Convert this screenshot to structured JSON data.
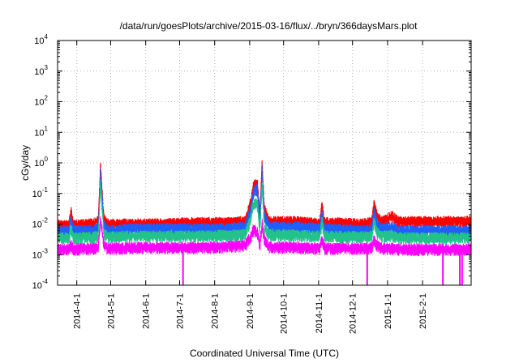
{
  "chart_data": {
    "type": "line",
    "title": "/data/run/goesPlots/archive/2015-03-16/flux/../bryn/366daysMars.plot",
    "xlabel": "Coordinated Universal Time (UTC)",
    "ylabel": "cGy/day",
    "x_axis": "date",
    "xlim": [
      "2014-03-15",
      "2015-03-16"
    ],
    "x_ticks": [
      "2014-4-1",
      "2014-5-1",
      "2014-6-1",
      "2014-7-1",
      "2014-8-1",
      "2014-9-1",
      "2014-10-1",
      "2014-11-1",
      "2014-12-1",
      "2015-1-1",
      "2015-2-1"
    ],
    "y_scale": "log",
    "ylim": [
      0.0001,
      10000
    ],
    "y_ticks": [
      {
        "base": "10",
        "exp": "-4"
      },
      {
        "base": "10",
        "exp": "-3"
      },
      {
        "base": "10",
        "exp": "-2"
      },
      {
        "base": "10",
        "exp": "-1"
      },
      {
        "base": "10",
        "exp": "0"
      },
      {
        "base": "10",
        "exp": "1"
      },
      {
        "base": "10",
        "exp": "2"
      },
      {
        "base": "10",
        "exp": "3"
      },
      {
        "base": "10",
        "exp": "4"
      }
    ],
    "grid": true,
    "series": [
      {
        "color": "#ff0000",
        "points": [
          [
            "2014-03-15",
            0.009
          ],
          [
            "2014-03-25",
            0.009
          ],
          [
            "2014-03-27",
            0.026
          ],
          [
            "2014-03-29",
            0.009
          ],
          [
            "2014-04-15",
            0.01
          ],
          [
            "2014-04-20",
            0.012
          ],
          [
            "2014-04-22",
            0.8
          ],
          [
            "2014-04-25",
            0.015
          ],
          [
            "2014-04-28",
            0.01
          ],
          [
            "2014-05-20",
            0.01
          ],
          [
            "2014-06-15",
            0.01
          ],
          [
            "2014-07-10",
            0.011
          ],
          [
            "2014-08-10",
            0.011
          ],
          [
            "2014-08-28",
            0.012
          ],
          [
            "2014-09-02",
            0.05
          ],
          [
            "2014-09-04",
            0.15
          ],
          [
            "2014-09-06",
            0.2
          ],
          [
            "2014-09-08",
            0.18
          ],
          [
            "2014-09-10",
            0.02
          ],
          [
            "2014-09-12",
            1.0
          ],
          [
            "2014-09-14",
            0.03
          ],
          [
            "2014-09-18",
            0.012
          ],
          [
            "2014-10-15",
            0.012
          ],
          [
            "2014-11-02",
            0.01
          ],
          [
            "2014-11-04",
            0.045
          ],
          [
            "2014-11-06",
            0.011
          ],
          [
            "2014-12-10",
            0.01
          ],
          [
            "2014-12-18",
            0.011
          ],
          [
            "2014-12-20",
            0.045
          ],
          [
            "2014-12-23",
            0.016
          ],
          [
            "2014-12-28",
            0.012
          ],
          [
            "2015-01-05",
            0.018
          ],
          [
            "2015-01-10",
            0.012
          ],
          [
            "2015-02-01",
            0.012
          ],
          [
            "2015-03-16",
            0.012
          ]
        ]
      },
      {
        "color": "#1f5fff",
        "points": [
          [
            "2014-03-15",
            0.006
          ],
          [
            "2014-03-25",
            0.006
          ],
          [
            "2014-03-27",
            0.014
          ],
          [
            "2014-03-29",
            0.006
          ],
          [
            "2014-04-15",
            0.006
          ],
          [
            "2014-04-20",
            0.007
          ],
          [
            "2014-04-22",
            0.5
          ],
          [
            "2014-04-25",
            0.009
          ],
          [
            "2014-04-28",
            0.006
          ],
          [
            "2014-05-20",
            0.007
          ],
          [
            "2014-06-15",
            0.007
          ],
          [
            "2014-07-10",
            0.007
          ],
          [
            "2014-08-10",
            0.007
          ],
          [
            "2014-08-28",
            0.008
          ],
          [
            "2014-09-02",
            0.03
          ],
          [
            "2014-09-04",
            0.1
          ],
          [
            "2014-09-06",
            0.14
          ],
          [
            "2014-09-08",
            0.12
          ],
          [
            "2014-09-10",
            0.012
          ],
          [
            "2014-09-12",
            0.6
          ],
          [
            "2014-09-14",
            0.02
          ],
          [
            "2014-09-18",
            0.008
          ],
          [
            "2014-10-15",
            0.008
          ],
          [
            "2014-11-02",
            0.007
          ],
          [
            "2014-11-04",
            0.025
          ],
          [
            "2014-11-06",
            0.007
          ],
          [
            "2014-12-10",
            0.006
          ],
          [
            "2014-12-18",
            0.007
          ],
          [
            "2014-12-20",
            0.025
          ],
          [
            "2014-12-23",
            0.009
          ],
          [
            "2014-12-28",
            0.007
          ],
          [
            "2015-01-05",
            0.008
          ],
          [
            "2015-01-10",
            0.006
          ],
          [
            "2015-02-01",
            0.006
          ],
          [
            "2015-03-16",
            0.006
          ]
        ]
      },
      {
        "color": "#22c28a",
        "points": [
          [
            "2014-03-15",
            0.0035
          ],
          [
            "2014-03-25",
            0.0035
          ],
          [
            "2014-03-27",
            0.007
          ],
          [
            "2014-03-29",
            0.0035
          ],
          [
            "2014-04-15",
            0.0038
          ],
          [
            "2014-04-20",
            0.004
          ],
          [
            "2014-04-22",
            0.2
          ],
          [
            "2014-04-25",
            0.005
          ],
          [
            "2014-04-28",
            0.0038
          ],
          [
            "2014-05-20",
            0.004
          ],
          [
            "2014-06-15",
            0.004
          ],
          [
            "2014-07-10",
            0.004
          ],
          [
            "2014-08-10",
            0.0042
          ],
          [
            "2014-08-28",
            0.0045
          ],
          [
            "2014-09-02",
            0.015
          ],
          [
            "2014-09-04",
            0.04
          ],
          [
            "2014-09-06",
            0.05
          ],
          [
            "2014-09-08",
            0.04
          ],
          [
            "2014-09-10",
            0.006
          ],
          [
            "2014-09-12",
            0.2
          ],
          [
            "2014-09-14",
            0.008
          ],
          [
            "2014-09-18",
            0.0045
          ],
          [
            "2014-10-15",
            0.0042
          ],
          [
            "2014-11-02",
            0.004
          ],
          [
            "2014-11-04",
            0.012
          ],
          [
            "2014-11-06",
            0.004
          ],
          [
            "2014-12-10",
            0.0038
          ],
          [
            "2014-12-18",
            0.004
          ],
          [
            "2014-12-20",
            0.012
          ],
          [
            "2014-12-23",
            0.005
          ],
          [
            "2014-12-28",
            0.004
          ],
          [
            "2015-01-05",
            0.0042
          ],
          [
            "2015-01-10",
            0.0035
          ],
          [
            "2015-02-01",
            0.0035
          ],
          [
            "2015-03-16",
            0.0035
          ]
        ]
      },
      {
        "color": "#ff00ff",
        "points": [
          [
            "2014-03-15",
            0.0015
          ],
          [
            "2014-03-25",
            0.0015
          ],
          [
            "2014-03-27",
            0.002
          ],
          [
            "2014-03-29",
            0.0015
          ],
          [
            "2014-04-15",
            0.0016
          ],
          [
            "2014-04-20",
            0.0017
          ],
          [
            "2014-04-22",
            0.015
          ],
          [
            "2014-04-25",
            0.002
          ],
          [
            "2014-04-28",
            0.0016
          ],
          [
            "2014-05-20",
            0.0017
          ],
          [
            "2014-06-15",
            0.0017
          ],
          [
            "2014-07-10",
            0.0017
          ],
          [
            "2014-08-10",
            0.0018
          ],
          [
            "2014-08-28",
            0.002
          ],
          [
            "2014-09-02",
            0.004
          ],
          [
            "2014-09-04",
            0.006
          ],
          [
            "2014-09-06",
            0.006
          ],
          [
            "2014-09-08",
            0.005
          ],
          [
            "2014-09-10",
            0.002
          ],
          [
            "2014-09-12",
            0.01
          ],
          [
            "2014-09-14",
            0.003
          ],
          [
            "2014-09-18",
            0.0018
          ],
          [
            "2014-10-15",
            0.0017
          ],
          [
            "2014-11-02",
            0.0016
          ],
          [
            "2014-11-04",
            0.003
          ],
          [
            "2014-11-06",
            0.0016
          ],
          [
            "2014-12-10",
            0.0016
          ],
          [
            "2014-12-18",
            0.0017
          ],
          [
            "2014-12-20",
            0.003
          ],
          [
            "2014-12-23",
            0.0019
          ],
          [
            "2014-12-28",
            0.0016
          ],
          [
            "2015-01-05",
            0.0016
          ],
          [
            "2015-01-10",
            0.0015
          ],
          [
            "2015-02-01",
            0.0015
          ],
          [
            "2015-03-16",
            0.0015
          ]
        ]
      }
    ],
    "dropouts": [
      {
        "date": "2014-07-04",
        "color": "#ff00ff",
        "value": 0.0001
      },
      {
        "date": "2014-12-14",
        "color": "#ff00ff",
        "value": 0.0001
      },
      {
        "date": "2015-02-19",
        "color": "#ff00ff",
        "value": 0.0001
      },
      {
        "date": "2015-03-06",
        "color": "#ff00ff",
        "value": 0.0001
      },
      {
        "date": "2015-03-08",
        "color": "#ff00ff",
        "value": 0.0001
      }
    ]
  }
}
